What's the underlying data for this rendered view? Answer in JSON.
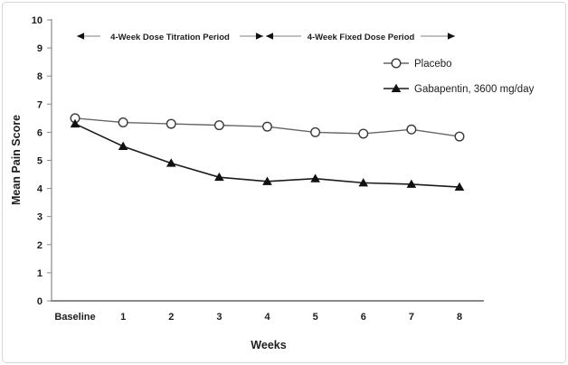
{
  "chart_data": {
    "type": "line",
    "title": "",
    "xlabel": "Weeks",
    "ylabel": "Mean Pain Score",
    "x_categories": [
      "Baseline",
      "1",
      "2",
      "3",
      "4",
      "5",
      "6",
      "7",
      "8"
    ],
    "y_ticks": [
      0,
      1,
      2,
      3,
      4,
      5,
      6,
      7,
      8,
      9,
      10
    ],
    "ylim": [
      0,
      10
    ],
    "grid": false,
    "legend_position": "top-right",
    "series": [
      {
        "name": "Placebo",
        "marker": "circle",
        "values": [
          6.5,
          6.35,
          6.3,
          6.25,
          6.2,
          6.0,
          5.95,
          6.1,
          5.85
        ]
      },
      {
        "name": "Gabapentin, 3600 mg/day",
        "marker": "triangle",
        "values": [
          6.3,
          5.5,
          4.9,
          4.4,
          4.25,
          4.35,
          4.2,
          4.15,
          4.05
        ]
      }
    ],
    "annotations": [
      {
        "label": "4-Week Dose Titration Period",
        "from_week": 0,
        "to_week": 4
      },
      {
        "label": "4-Week Fixed Dose Period",
        "from_week": 4,
        "to_week": 8
      }
    ]
  },
  "colors": {
    "axis": "#8a8a8a",
    "text": "#1d1d1d",
    "border": "#d6d6d6",
    "annotation_line": "#999999",
    "arrowhead": "#111111",
    "placebo_line": "#666666",
    "placebo_marker_stroke": "#3a3a3a",
    "placebo_marker_fill": "#ffffff",
    "gabapentin_line": "#1c1c1c",
    "gabapentin_marker_fill": "#111111"
  }
}
